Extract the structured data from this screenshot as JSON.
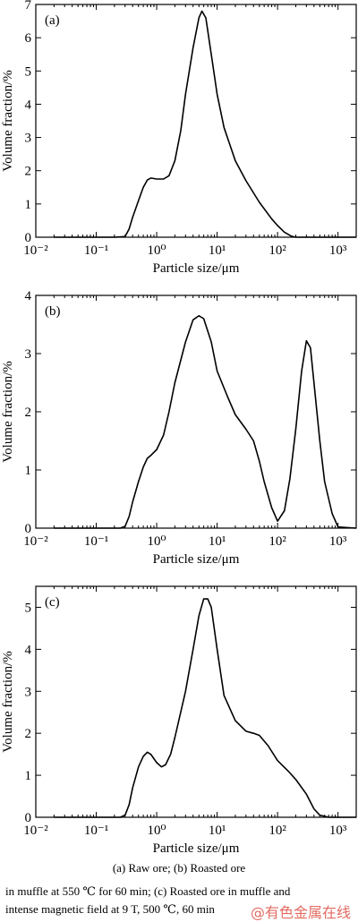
{
  "figure": {
    "caption_lines": [
      "(a) Raw ore; (b) Roasted ore",
      "in muffle at 550 ℃ for 60 min; (c) Roasted ore in muffle and",
      "intense magnetic field at 9 T, 500 ℃, 60 min"
    ],
    "watermark": "@有色金属在线"
  },
  "chart_data": [
    {
      "type": "line",
      "panel_label": "(a)",
      "xlabel": "Particle size/μm",
      "ylabel": "Volume fraction/%",
      "x_scale": "log",
      "xlim": [
        0.01,
        2000
      ],
      "ylim": [
        0,
        7
      ],
      "x_ticks": [
        0.01,
        0.1,
        1,
        10,
        100,
        1000
      ],
      "x_tick_labels": [
        "10⁻²",
        "10⁻¹",
        "10⁰",
        "10¹",
        "10²",
        "10³"
      ],
      "y_ticks": [
        0,
        1,
        2,
        3,
        4,
        5,
        6,
        7
      ],
      "y_tick_labels": [
        "0",
        "1",
        "2",
        "3",
        "4",
        "5",
        "6",
        "7"
      ],
      "grid": false,
      "series": [
        {
          "x": [
            0.02,
            0.2,
            0.3,
            0.35,
            0.4,
            0.5,
            0.6,
            0.7,
            0.8,
            1.0,
            1.3,
            1.6,
            2,
            2.5,
            3,
            4,
            5,
            5.6,
            6.5,
            8,
            10,
            13,
            20,
            30,
            50,
            80,
            100,
            130,
            170,
            200,
            500,
            2000
          ],
          "y": [
            0,
            0,
            0.02,
            0.25,
            0.6,
            1.1,
            1.5,
            1.72,
            1.78,
            1.75,
            1.75,
            1.85,
            2.3,
            3.2,
            4.3,
            5.7,
            6.6,
            6.8,
            6.6,
            5.5,
            4.3,
            3.3,
            2.3,
            1.7,
            1.05,
            0.55,
            0.35,
            0.15,
            0.03,
            0,
            0,
            0
          ]
        }
      ]
    },
    {
      "type": "line",
      "panel_label": "(b)",
      "xlabel": "Particle size/μm",
      "ylabel": "Volume fraction/%",
      "x_scale": "log",
      "xlim": [
        0.01,
        2000
      ],
      "ylim": [
        0,
        4
      ],
      "x_ticks": [
        0.01,
        0.1,
        1,
        10,
        100,
        1000
      ],
      "x_tick_labels": [
        "10⁻²",
        "10⁻¹",
        "10⁰",
        "10¹",
        "10²",
        "10³"
      ],
      "y_ticks": [
        0,
        1,
        2,
        3,
        4
      ],
      "y_tick_labels": [
        "0",
        "1",
        "2",
        "3",
        "4"
      ],
      "grid": false,
      "series": [
        {
          "x": [
            0.02,
            0.25,
            0.3,
            0.35,
            0.4,
            0.5,
            0.6,
            0.7,
            0.8,
            1.0,
            1.3,
            1.6,
            2,
            3,
            4,
            5,
            6,
            8,
            10,
            15,
            20,
            30,
            40,
            50,
            60,
            80,
            100,
            130,
            160,
            200,
            250,
            300,
            350,
            400,
            500,
            600,
            800,
            1000,
            2000
          ],
          "y": [
            0,
            0,
            0.03,
            0.2,
            0.45,
            0.8,
            1.05,
            1.2,
            1.25,
            1.35,
            1.6,
            2.0,
            2.5,
            3.2,
            3.58,
            3.65,
            3.6,
            3.2,
            2.7,
            2.25,
            1.95,
            1.7,
            1.5,
            1.15,
            0.8,
            0.35,
            0.12,
            0.3,
            0.85,
            1.7,
            2.7,
            3.22,
            3.1,
            2.5,
            1.5,
            0.8,
            0.25,
            0.02,
            0
          ]
        }
      ]
    },
    {
      "type": "line",
      "panel_label": "(c)",
      "xlabel": "Particle size/μm",
      "ylabel": "Volume fraction/%",
      "x_scale": "log",
      "xlim": [
        0.01,
        2000
      ],
      "ylim": [
        0,
        5.5
      ],
      "x_ticks": [
        0.01,
        0.1,
        1,
        10,
        100,
        1000
      ],
      "x_tick_labels": [
        "10⁻²",
        "10⁻¹",
        "10⁰",
        "10¹",
        "10²",
        "10³"
      ],
      "y_ticks": [
        0,
        1,
        2,
        3,
        4,
        5
      ],
      "y_tick_labels": [
        "0",
        "1",
        "2",
        "3",
        "4",
        "5"
      ],
      "grid": false,
      "series": [
        {
          "x": [
            0.02,
            0.25,
            0.3,
            0.35,
            0.4,
            0.5,
            0.6,
            0.7,
            0.8,
            1.0,
            1.2,
            1.4,
            1.7,
            2,
            3,
            4,
            5,
            6,
            7,
            8,
            10,
            13,
            20,
            30,
            40,
            50,
            70,
            100,
            150,
            200,
            300,
            400,
            500,
            700,
            1000,
            2000
          ],
          "y": [
            0,
            0,
            0.05,
            0.3,
            0.7,
            1.2,
            1.45,
            1.55,
            1.5,
            1.3,
            1.2,
            1.25,
            1.5,
            1.9,
            3.0,
            4.0,
            4.8,
            5.2,
            5.2,
            5.0,
            4.0,
            2.9,
            2.3,
            2.05,
            2.0,
            1.95,
            1.7,
            1.35,
            1.1,
            0.9,
            0.55,
            0.2,
            0.05,
            0,
            0,
            0
          ]
        }
      ]
    }
  ]
}
